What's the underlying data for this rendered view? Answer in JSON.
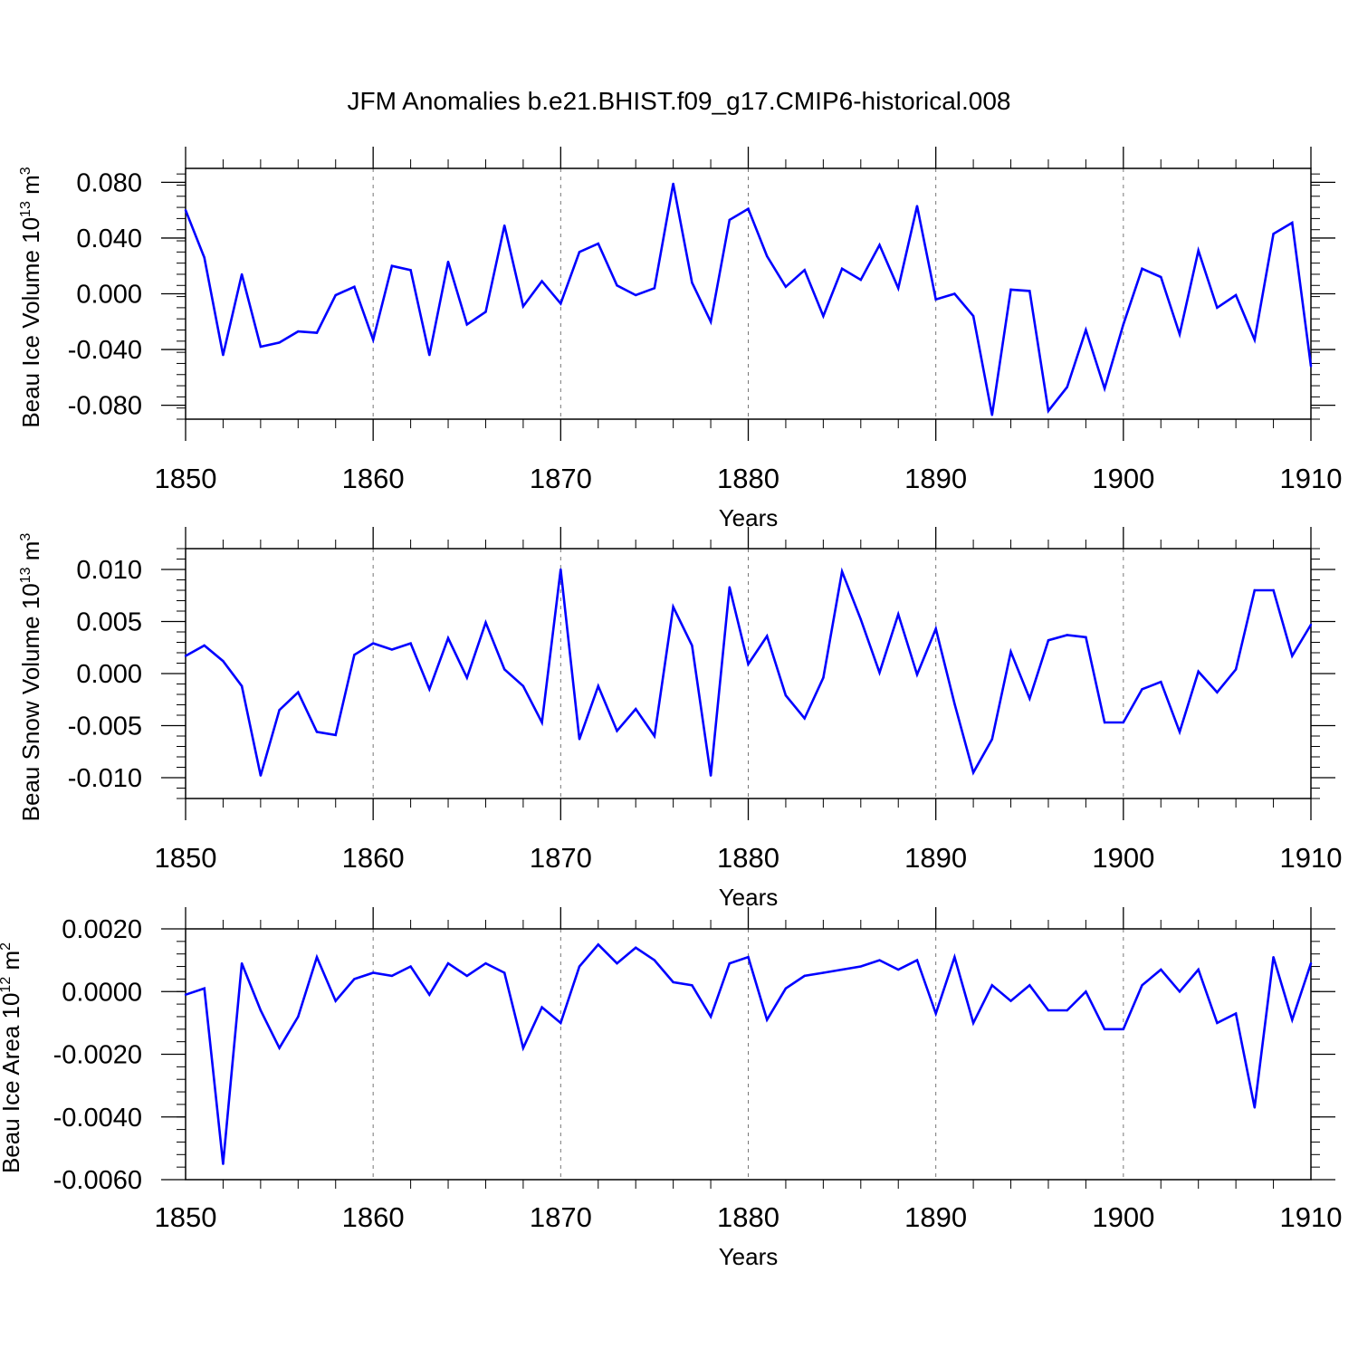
{
  "title": "JFM Anomalies b.e21.BHIST.f09_g17.CMIP6-historical.008",
  "colors": {
    "line": "#0000ff",
    "axis": "#000000",
    "grid": "#777777"
  },
  "chart_data": [
    {
      "type": "line",
      "ylabel": "Beau Ice Volume 10",
      "ylabel_exp": "13",
      "ylabel_unit": " m",
      "ylabel_unit_exp": "3",
      "xlabel": "Years",
      "xlim": [
        1850,
        1910
      ],
      "ylim": [
        -0.09,
        0.09
      ],
      "yticks": [
        0.08,
        0.04,
        0.0,
        -0.04,
        -0.08
      ],
      "ytick_labels": [
        "0.080",
        "0.040",
        "0.000",
        "-0.040",
        "-0.080"
      ],
      "xticks": [
        1850,
        1860,
        1870,
        1880,
        1890,
        1900,
        1910
      ],
      "xtick_labels": [
        "1850",
        "1860",
        "1870",
        "1880",
        "1890",
        "1900",
        "1910"
      ],
      "grid_x": [
        1860,
        1870,
        1880,
        1890,
        1900
      ],
      "x_start": 1850,
      "values": [
        0.06,
        0.026,
        -0.044,
        0.014,
        -0.038,
        -0.035,
        -0.027,
        -0.028,
        -0.001,
        0.005,
        -0.033,
        0.02,
        0.017,
        -0.044,
        0.023,
        -0.022,
        -0.013,
        0.049,
        -0.009,
        0.009,
        -0.007,
        0.03,
        0.036,
        0.006,
        -0.001,
        0.004,
        0.079,
        0.008,
        -0.02,
        0.053,
        0.061,
        0.027,
        0.005,
        0.017,
        -0.016,
        0.018,
        0.01,
        0.035,
        0.004,
        0.063,
        -0.004,
        0.0,
        -0.016,
        -0.087,
        0.003,
        0.002,
        -0.084,
        -0.067,
        -0.026,
        -0.068,
        -0.022,
        0.018,
        0.012,
        -0.029,
        0.031,
        -0.01,
        -0.001,
        -0.033,
        0.043,
        0.051,
        -0.052
      ]
    },
    {
      "type": "line",
      "ylabel": "Beau Snow Volume 10",
      "ylabel_exp": "13",
      "ylabel_unit": " m",
      "ylabel_unit_exp": "3",
      "xlabel": "Years",
      "xlim": [
        1850,
        1910
      ],
      "ylim": [
        -0.012,
        0.012
      ],
      "yticks": [
        0.01,
        0.005,
        0.0,
        -0.005,
        -0.01
      ],
      "ytick_labels": [
        "0.010",
        "0.005",
        "0.000",
        "-0.005",
        "-0.010"
      ],
      "xticks": [
        1850,
        1860,
        1870,
        1880,
        1890,
        1900,
        1910
      ],
      "xtick_labels": [
        "1850",
        "1860",
        "1870",
        "1880",
        "1890",
        "1900",
        "1910"
      ],
      "grid_x": [
        1860,
        1870,
        1880,
        1890,
        1900
      ],
      "x_start": 1850,
      "values": [
        0.0017,
        0.0027,
        0.0012,
        -0.0012,
        -0.0098,
        -0.0035,
        -0.0018,
        -0.0056,
        -0.0059,
        0.0018,
        0.0029,
        0.0023,
        0.0029,
        -0.0015,
        0.0034,
        -0.0004,
        0.0049,
        0.0004,
        -0.0012,
        -0.0047,
        0.01,
        -0.0063,
        -0.0012,
        -0.0055,
        -0.0034,
        -0.006,
        0.0064,
        0.0027,
        -0.0098,
        0.0083,
        0.0009,
        0.0036,
        -0.0021,
        -0.0043,
        -0.0004,
        0.0098,
        0.0052,
        0.0001,
        0.0057,
        -0.0001,
        0.0043,
        -0.0029,
        -0.0095,
        -0.0063,
        0.0021,
        -0.0024,
        0.0032,
        0.0037,
        0.0035,
        -0.0047,
        -0.0047,
        -0.0015,
        -0.0008,
        -0.0056,
        0.0002,
        -0.0018,
        0.0004,
        0.008,
        0.008,
        0.0017,
        0.0047
      ]
    },
    {
      "type": "line",
      "ylabel": "Beau Ice Area 10",
      "ylabel_exp": "12",
      "ylabel_unit": " m",
      "ylabel_unit_exp": "2",
      "xlabel": "Years",
      "xlim": [
        1850,
        1910
      ],
      "ylim": [
        -0.006,
        0.002
      ],
      "yticks": [
        0.002,
        0.0,
        -0.002,
        -0.004,
        -0.006
      ],
      "ytick_labels": [
        "0.0020",
        "0.0000",
        "-0.0020",
        "-0.0040",
        "-0.0060"
      ],
      "xticks": [
        1850,
        1860,
        1870,
        1880,
        1890,
        1900,
        1910
      ],
      "xtick_labels": [
        "1850",
        "1860",
        "1870",
        "1880",
        "1890",
        "1900",
        "1910"
      ],
      "grid_x": [
        1860,
        1870,
        1880,
        1890,
        1900
      ],
      "x_start": 1850,
      "values": [
        -0.0001,
        0.0001,
        -0.0055,
        0.0009,
        -0.0006,
        -0.0018,
        -0.0008,
        0.0011,
        -0.0003,
        0.0004,
        0.0006,
        0.0005,
        0.0008,
        -0.0001,
        0.0009,
        0.0005,
        0.0009,
        0.0006,
        -0.0018,
        -0.0005,
        -0.001,
        0.0008,
        0.0015,
        0.0009,
        0.0014,
        0.001,
        0.0003,
        0.0002,
        -0.0008,
        0.0009,
        0.0011,
        -0.0009,
        0.0001,
        0.0005,
        0.0006,
        0.0007,
        0.0008,
        0.001,
        0.0007,
        0.001,
        -0.0007,
        0.0011,
        -0.001,
        0.0002,
        -0.0003,
        0.0002,
        -0.0006,
        -0.0006,
        0.0,
        -0.0012,
        -0.0012,
        0.0002,
        0.0007,
        0.0,
        0.0007,
        -0.001,
        -0.0007,
        -0.0037,
        0.0011,
        -0.0009,
        0.0009
      ]
    }
  ]
}
